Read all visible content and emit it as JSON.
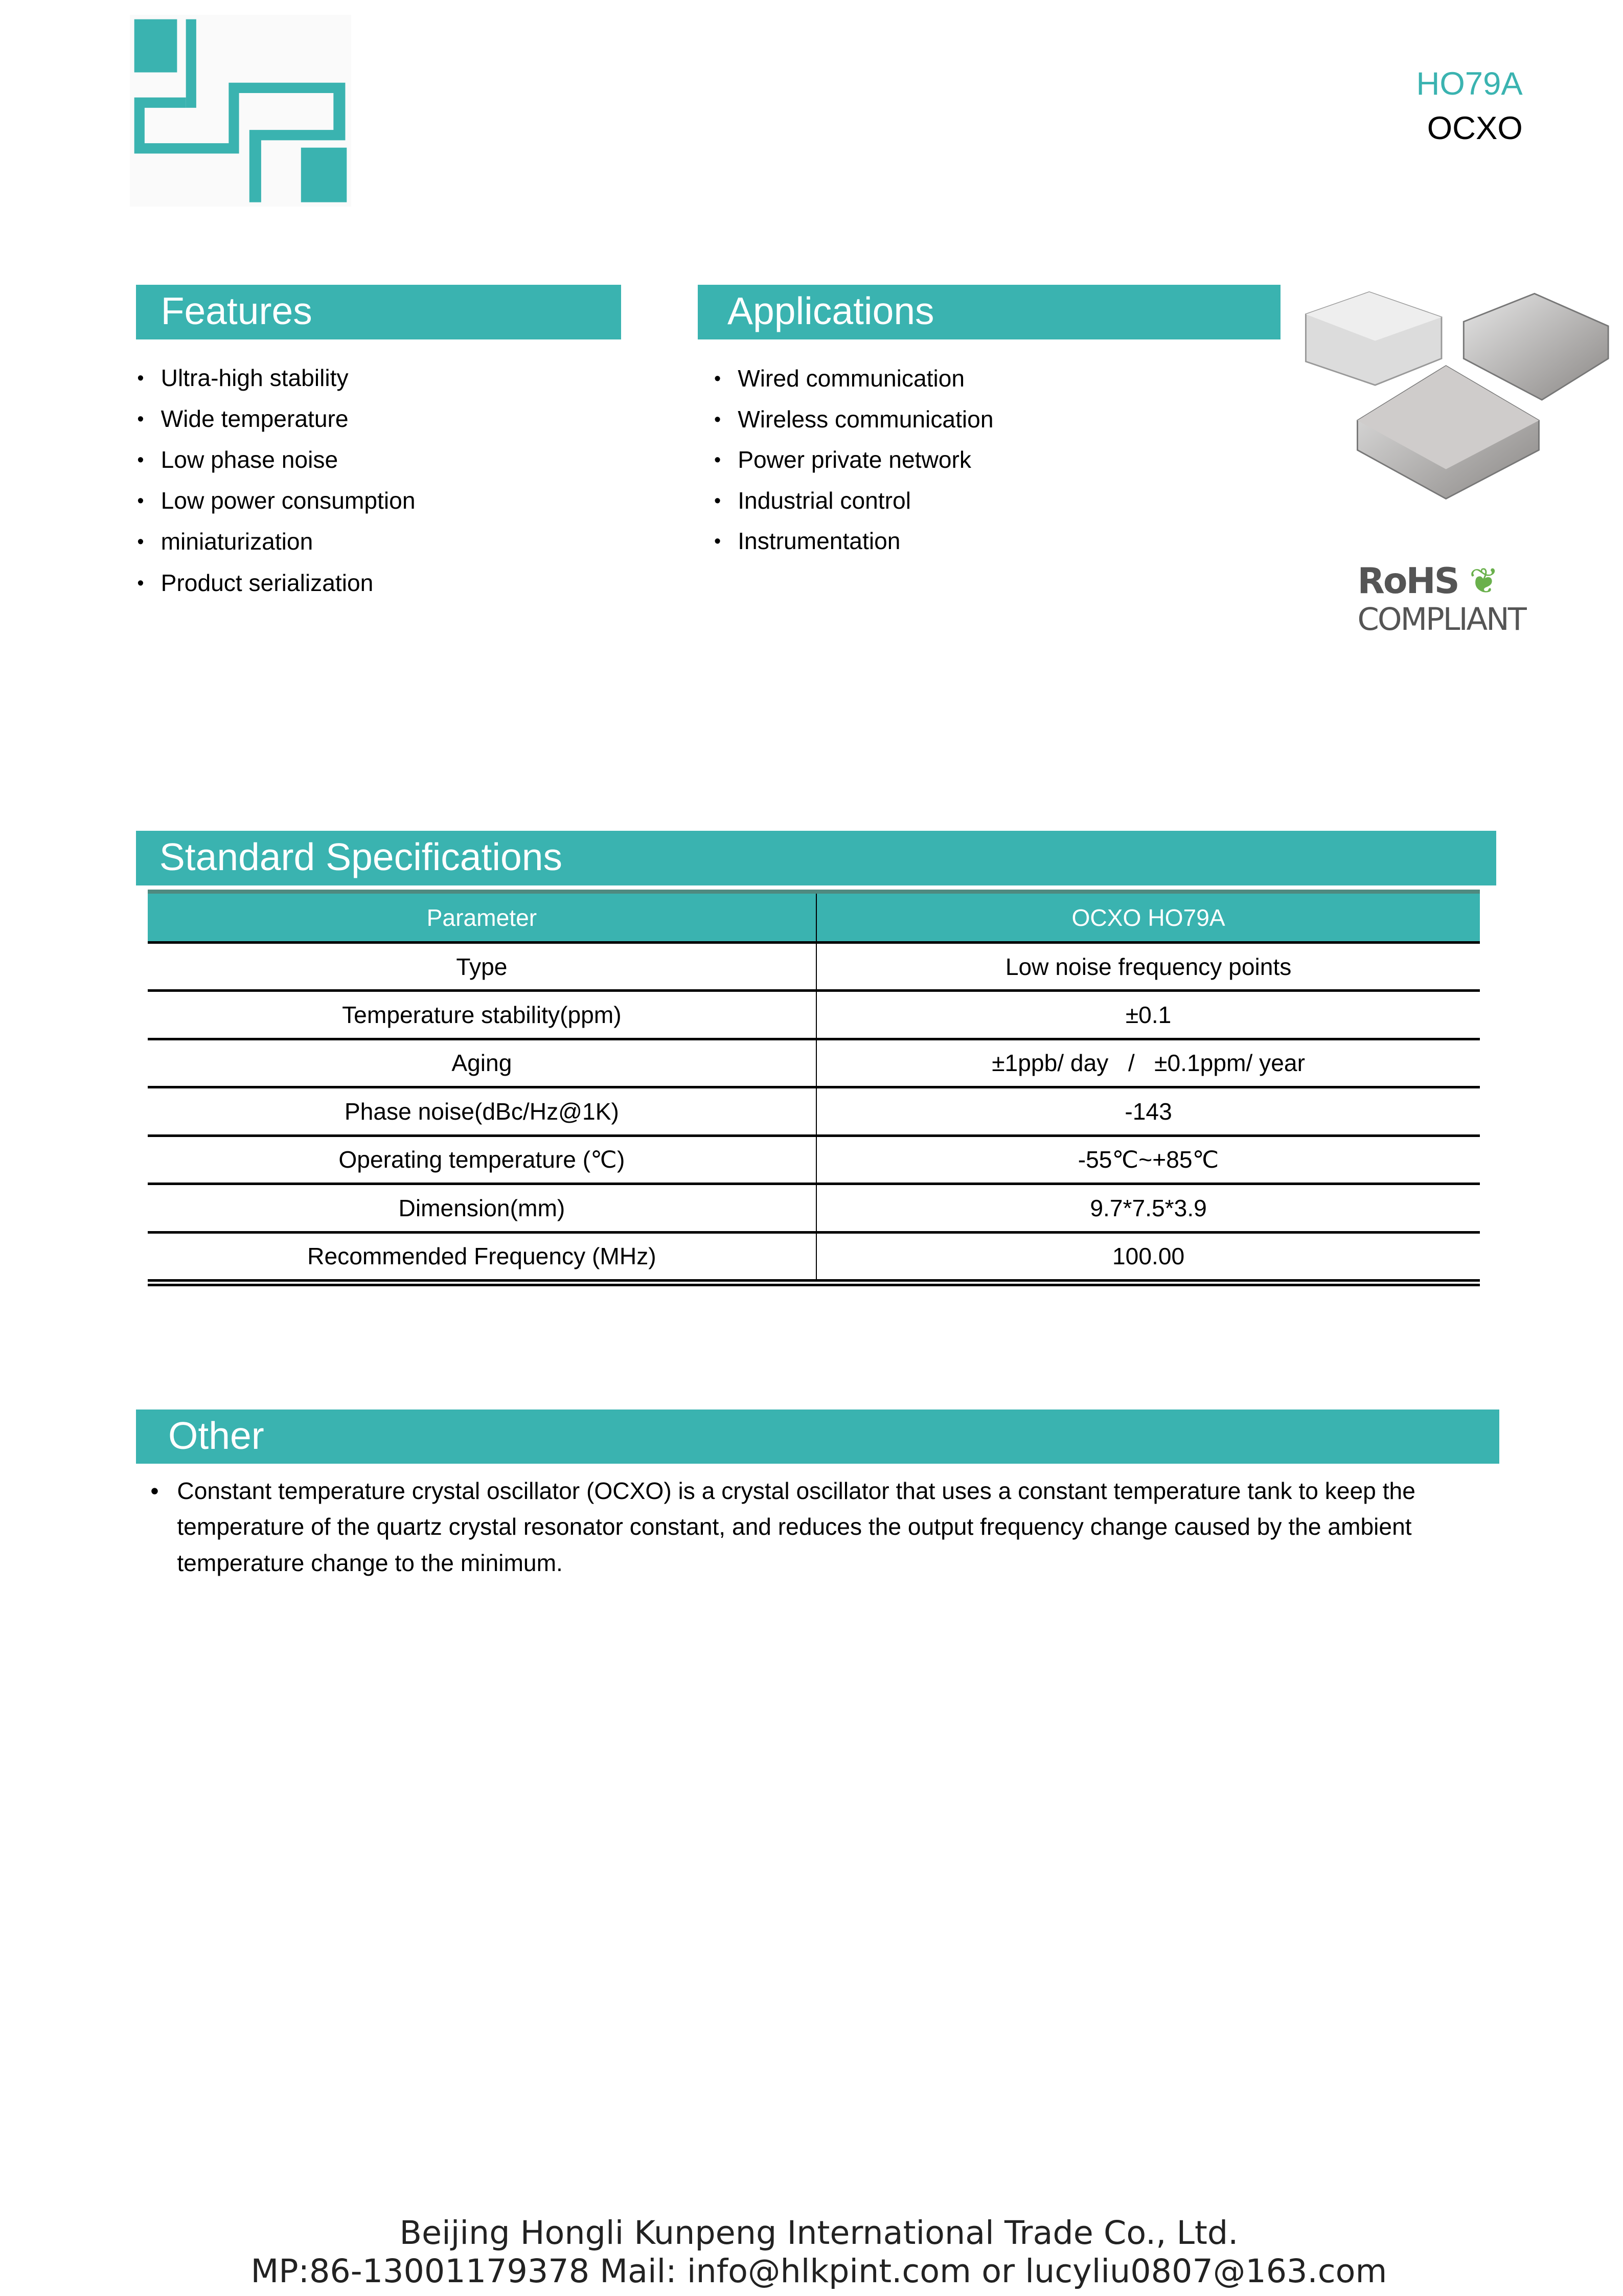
{
  "header": {
    "model": "HO79A",
    "category": "OCXO",
    "accent_color": "#3ab3b0"
  },
  "features": {
    "title": "Features",
    "items": [
      "Ultra-high stability",
      "Wide temperature",
      "Low phase noise",
      "Low power consumption",
      "miniaturization",
      "Product serialization"
    ]
  },
  "applications": {
    "title": "Applications",
    "items": [
      "Wired communication",
      "Wireless communication",
      "Power private network",
      "Industrial control",
      "Instrumentation"
    ]
  },
  "rohs": {
    "line1": "RoHS",
    "line2": "COMPLIANT"
  },
  "specs": {
    "title": "Standard Specifications",
    "columns": [
      "Parameter",
      "OCXO HO79A"
    ],
    "rows": [
      [
        "Type",
        "Low noise frequency points"
      ],
      [
        "Temperature stability(ppm)",
        "±0.1"
      ],
      [
        "Aging",
        "±1ppb/ day   /   ±0.1ppm/ year"
      ],
      [
        "Phase noise(dBc/Hz@1K)",
        "-143"
      ],
      [
        "Operating temperature (℃)",
        "-55℃~+85℃"
      ],
      [
        "Dimension(mm)",
        "9.7*7.5*3.9"
      ],
      [
        "Recommended Frequency (MHz)",
        "100.00"
      ]
    ]
  },
  "other": {
    "title": "Other",
    "text": "Constant temperature crystal oscillator (OCXO) is a crystal oscillator that uses a constant temperature tank to keep the temperature of the quartz crystal resonator constant, and reduces the output frequency change caused by the ambient temperature change to the minimum."
  },
  "footer": {
    "company": "Beijing Hongli Kunpeng International Trade Co., Ltd.",
    "contact": "MP:86-13001179378 Mail: info@hlkpint.com or lucyliu0807@163.com"
  }
}
